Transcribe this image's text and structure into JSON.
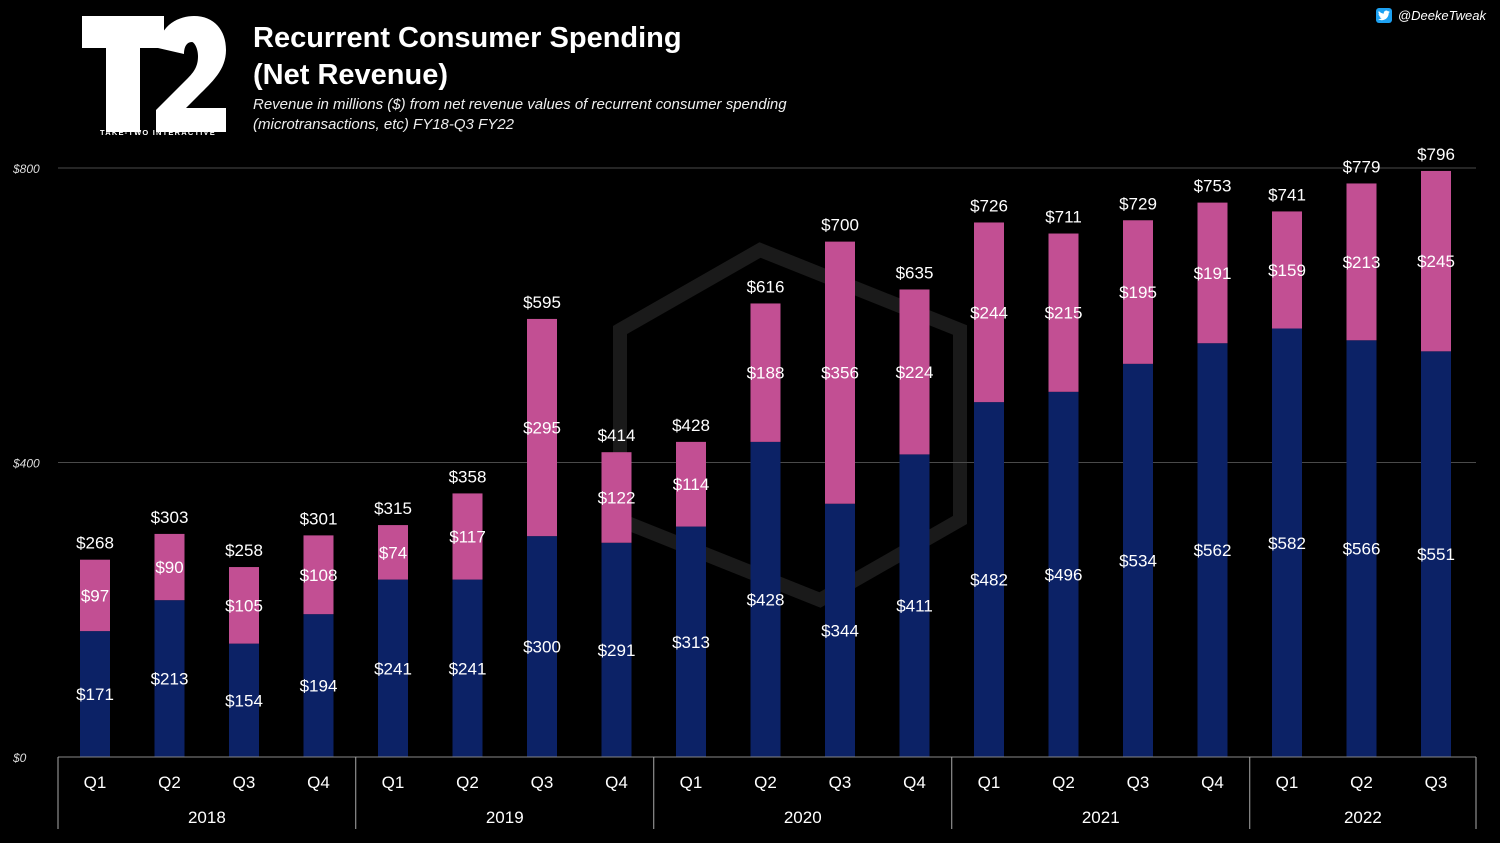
{
  "header": {
    "title_line1": "Recurrent Consumer Spending",
    "title_line2": "(Net Revenue)",
    "subtitle": "Revenue in millions ($) from net revenue values of recurrent consumer spending (microtransactions, etc) FY18-Q3 FY22",
    "logo_text": "T2",
    "logo_caption": "TAKE-TWO INTERACTIVE",
    "credit": "@DeekeTweak"
  },
  "colors": {
    "background": "#000000",
    "bottom_series": "#0c2266",
    "top_series": "#c24f93",
    "grid": "#4a4a4a"
  },
  "chart_data": {
    "type": "bar",
    "stacked": true,
    "title": "Recurrent Consumer Spending (Net Revenue)",
    "categories": [
      "Q1",
      "Q2",
      "Q3",
      "Q4",
      "Q1",
      "Q2",
      "Q3",
      "Q4",
      "Q1",
      "Q2",
      "Q3",
      "Q4",
      "Q1",
      "Q2",
      "Q3",
      "Q4",
      "Q1",
      "Q2",
      "Q3"
    ],
    "groups": [
      {
        "label": "2018",
        "count": 4
      },
      {
        "label": "2019",
        "count": 4
      },
      {
        "label": "2020",
        "count": 4
      },
      {
        "label": "2021",
        "count": 4
      },
      {
        "label": "2022",
        "count": 3
      }
    ],
    "series": [
      {
        "name": "bottom",
        "values": [
          171,
          213,
          154,
          194,
          241,
          241,
          300,
          291,
          313,
          428,
          344,
          411,
          482,
          496,
          534,
          562,
          582,
          566,
          551
        ],
        "labels": [
          "$171",
          "$213",
          "$154",
          "$194",
          "$241",
          "$241",
          "$300",
          "$291",
          "$313",
          "$428",
          "$344",
          "$411",
          "$482",
          "$496",
          "$534",
          "$562",
          "$582",
          "$566",
          "$551"
        ]
      },
      {
        "name": "top",
        "values": [
          97,
          90,
          105,
          108,
          74,
          117,
          295,
          122,
          114,
          188,
          356,
          224,
          244,
          215,
          195,
          191,
          159,
          213,
          245
        ],
        "labels": [
          "$97",
          "$90",
          "$105",
          "$108",
          "$74",
          "$117",
          "$295",
          "$122",
          "$114",
          "$188",
          "$356",
          "$224",
          "$244",
          "$215",
          "$195",
          "$191",
          "$159",
          "$213",
          "$245"
        ]
      }
    ],
    "totals": [
      268,
      303,
      258,
      301,
      315,
      358,
      595,
      414,
      428,
      616,
      700,
      635,
      726,
      711,
      729,
      753,
      741,
      779,
      796
    ],
    "total_labels": [
      "$268",
      "$303",
      "$258",
      "$301",
      "$315",
      "$358",
      "$595",
      "$414",
      "$428",
      "$616",
      "$700",
      "$635",
      "$726",
      "$711",
      "$729",
      "$753",
      "$741",
      "$779",
      "$796"
    ],
    "y_ticks": [
      0,
      400,
      800
    ],
    "y_tick_labels": [
      "$0",
      "$400",
      "$800"
    ],
    "ylim": [
      0,
      800
    ],
    "grid": true
  }
}
